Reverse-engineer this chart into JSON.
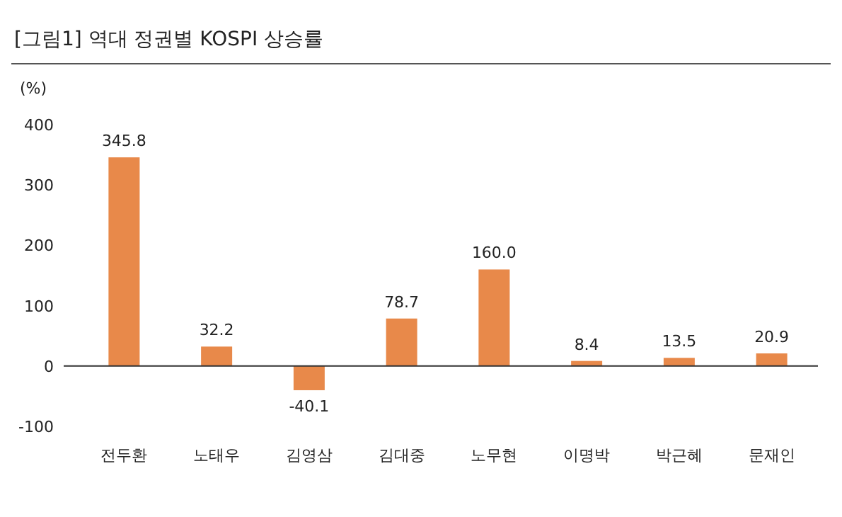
{
  "chart_data": {
    "type": "bar",
    "title": "[그림1]    역대 정권별 KOSPI 상승률",
    "ylabel": "(%)",
    "categories": [
      "전두환",
      "노태우",
      "김영삼",
      "김대중",
      "노무현",
      "이명박",
      "박근혜",
      "문재인"
    ],
    "values": [
      345.8,
      32.2,
      -40.1,
      78.7,
      160.0,
      8.4,
      13.5,
      20.9
    ],
    "color": "#e8894a",
    "ylim": [
      -100,
      400
    ],
    "yticks": [
      -100,
      0,
      100,
      200,
      300,
      400
    ],
    "value_labels": [
      "345.8",
      "32.2",
      "-40.1",
      "78.7",
      "160.0",
      "8.4",
      "13.5",
      "20.9"
    ]
  }
}
